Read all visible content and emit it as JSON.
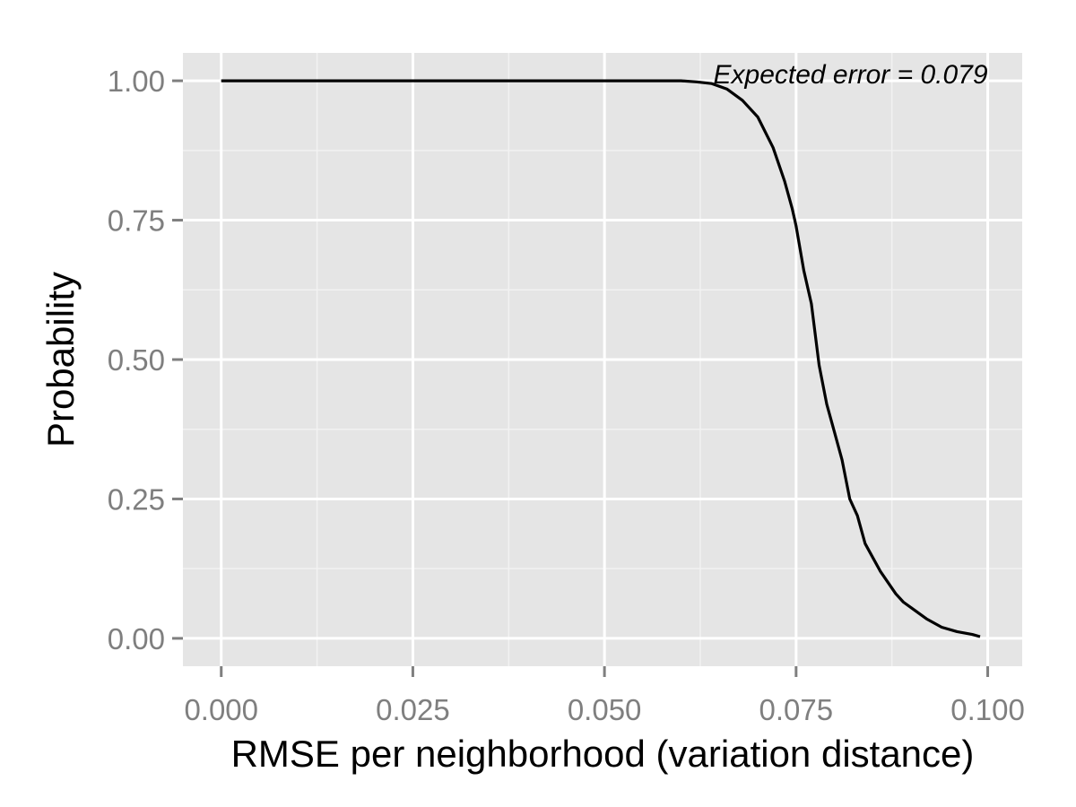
{
  "chart_data": {
    "type": "line",
    "title": "",
    "xlabel": "RMSE per neighborhood (variation distance)",
    "ylabel": "Probability",
    "xlim": [
      -0.005,
      0.1045
    ],
    "ylim": [
      -0.05,
      1.05
    ],
    "x_ticks": [
      0.0,
      0.025,
      0.05,
      0.075,
      0.1
    ],
    "x_tick_labels": [
      "0.000",
      "0.025",
      "0.050",
      "0.075",
      "0.100"
    ],
    "y_ticks": [
      0.0,
      0.25,
      0.5,
      0.75,
      1.0
    ],
    "y_tick_labels": [
      "0.00",
      "0.25",
      "0.50",
      "0.75",
      "1.00"
    ],
    "grid": true,
    "annotation": {
      "text": "Expected error = 0.079",
      "x": 0.1,
      "y": 1.0
    },
    "series": [
      {
        "color": "#000000",
        "x": [
          0.0,
          0.055,
          0.06,
          0.062,
          0.064,
          0.066,
          0.068,
          0.07,
          0.072,
          0.0735,
          0.0745,
          0.075,
          0.076,
          0.077,
          0.078,
          0.079,
          0.08,
          0.081,
          0.082,
          0.083,
          0.084,
          0.085,
          0.086,
          0.088,
          0.089,
          0.09,
          0.092,
          0.094,
          0.096,
          0.098,
          0.099
        ],
        "y": [
          1.0,
          1.0,
          1.0,
          0.998,
          0.995,
          0.985,
          0.965,
          0.935,
          0.88,
          0.82,
          0.77,
          0.74,
          0.66,
          0.6,
          0.49,
          0.42,
          0.37,
          0.32,
          0.25,
          0.22,
          0.17,
          0.145,
          0.12,
          0.08,
          0.065,
          0.055,
          0.035,
          0.02,
          0.012,
          0.007,
          0.003
        ]
      }
    ]
  }
}
